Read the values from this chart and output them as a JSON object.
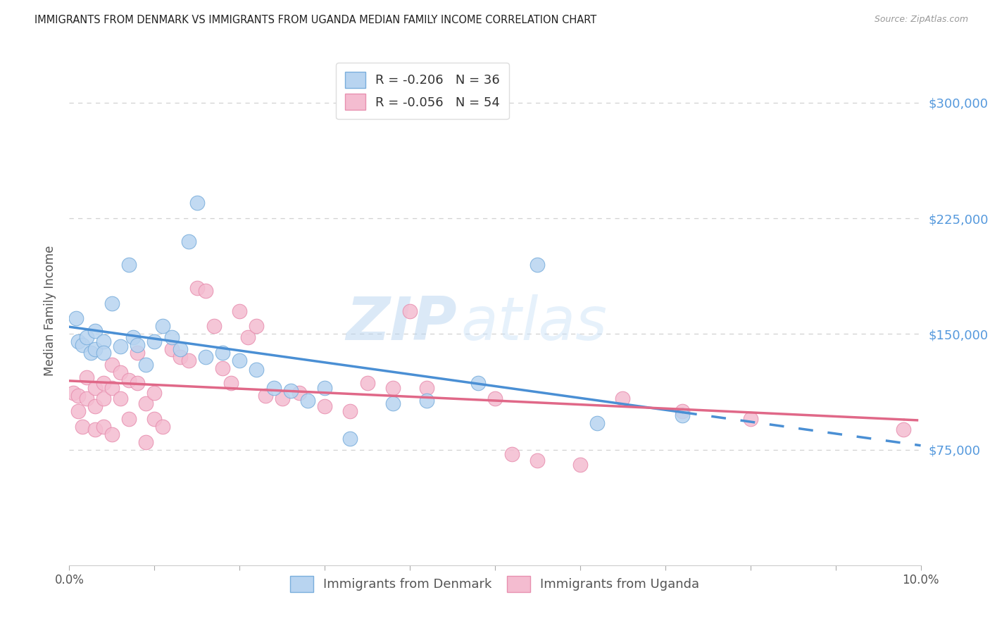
{
  "title": "IMMIGRANTS FROM DENMARK VS IMMIGRANTS FROM UGANDA MEDIAN FAMILY INCOME CORRELATION CHART",
  "source": "Source: ZipAtlas.com",
  "ylabel": "Median Family Income",
  "xlim": [
    0.0,
    0.1
  ],
  "ylim": [
    0,
    330000
  ],
  "xtick_positions": [
    0.0,
    0.01,
    0.02,
    0.03,
    0.04,
    0.05,
    0.06,
    0.07,
    0.08,
    0.09,
    0.1
  ],
  "xtick_labels": [
    "0.0%",
    "",
    "",
    "",
    "",
    "",
    "",
    "",
    "",
    "",
    "10.0%"
  ],
  "ytick_values": [
    75000,
    150000,
    225000,
    300000
  ],
  "ytick_labels": [
    "$75,000",
    "$150,000",
    "$225,000",
    "$300,000"
  ],
  "denmark_color": "#b8d4f0",
  "uganda_color": "#f4bcd0",
  "denmark_edge_color": "#7aaedc",
  "uganda_edge_color": "#e890b0",
  "denmark_line_color": "#4a8fd4",
  "uganda_line_color": "#e06888",
  "denmark_R": -0.206,
  "denmark_N": 36,
  "uganda_R": -0.056,
  "uganda_N": 54,
  "legend_label_denmark": "Immigrants from Denmark",
  "legend_label_uganda": "Immigrants from Uganda",
  "watermark_zip": "ZIP",
  "watermark_atlas": "atlas",
  "background_color": "#ffffff",
  "grid_color": "#cccccc",
  "title_color": "#222222",
  "source_color": "#999999",
  "right_ytick_color": "#5599dd",
  "denmark_points_x": [
    0.0008,
    0.001,
    0.0015,
    0.002,
    0.0025,
    0.003,
    0.003,
    0.004,
    0.004,
    0.005,
    0.006,
    0.007,
    0.0075,
    0.008,
    0.009,
    0.01,
    0.011,
    0.012,
    0.013,
    0.014,
    0.015,
    0.016,
    0.018,
    0.02,
    0.022,
    0.024,
    0.026,
    0.028,
    0.03,
    0.033,
    0.038,
    0.042,
    0.048,
    0.055,
    0.062,
    0.072
  ],
  "denmark_points_y": [
    160000,
    145000,
    143000,
    148000,
    138000,
    152000,
    140000,
    145000,
    138000,
    170000,
    142000,
    195000,
    148000,
    143000,
    130000,
    145000,
    155000,
    148000,
    140000,
    210000,
    235000,
    135000,
    138000,
    133000,
    127000,
    115000,
    113000,
    107000,
    115000,
    82000,
    105000,
    107000,
    118000,
    195000,
    92000,
    97000
  ],
  "uganda_points_x": [
    0.0005,
    0.001,
    0.001,
    0.0015,
    0.002,
    0.002,
    0.003,
    0.003,
    0.003,
    0.004,
    0.004,
    0.004,
    0.005,
    0.005,
    0.005,
    0.006,
    0.006,
    0.007,
    0.007,
    0.008,
    0.008,
    0.009,
    0.009,
    0.01,
    0.01,
    0.011,
    0.012,
    0.013,
    0.014,
    0.015,
    0.016,
    0.017,
    0.018,
    0.019,
    0.02,
    0.021,
    0.022,
    0.023,
    0.025,
    0.027,
    0.03,
    0.033,
    0.035,
    0.038,
    0.04,
    0.042,
    0.05,
    0.052,
    0.055,
    0.06,
    0.065,
    0.072,
    0.08,
    0.098
  ],
  "uganda_points_y": [
    112000,
    110000,
    100000,
    90000,
    122000,
    108000,
    115000,
    103000,
    88000,
    118000,
    108000,
    90000,
    130000,
    115000,
    85000,
    125000,
    108000,
    120000,
    95000,
    138000,
    118000,
    80000,
    105000,
    112000,
    95000,
    90000,
    140000,
    135000,
    133000,
    180000,
    178000,
    155000,
    128000,
    118000,
    165000,
    148000,
    155000,
    110000,
    108000,
    112000,
    103000,
    100000,
    118000,
    115000,
    165000,
    115000,
    108000,
    72000,
    68000,
    65000,
    108000,
    100000,
    95000,
    88000
  ]
}
